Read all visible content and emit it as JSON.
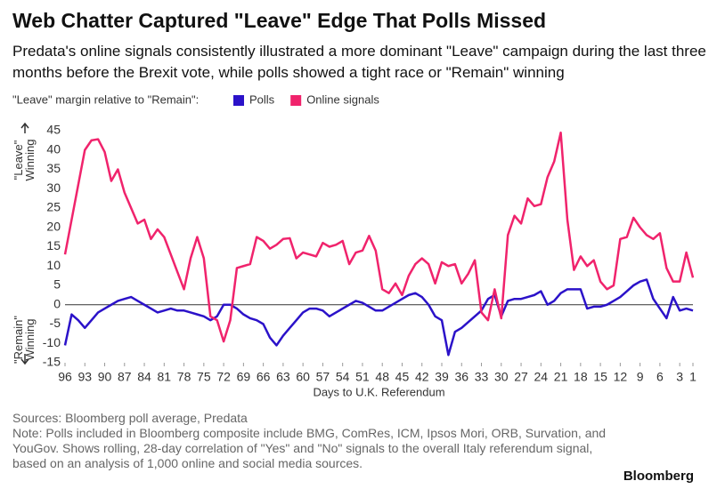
{
  "chart_data": {
    "type": "line",
    "title": "Web Chatter Captured \"Leave\" Edge That Polls Missed",
    "subtitle": "Predata's online signals consistently illustrated a more dominant \"Leave\" campaign during the last three months before the Brexit vote, while polls showed a tight race or \"Remain\" winning",
    "legend_title": "\"Leave\" margin relative to \"Remain\":",
    "y_label_top": [
      "\"Leave\"",
      "Winning"
    ],
    "y_label_bottom": [
      "\"Remain\"",
      "Winning"
    ],
    "x_label": "Days to U.K. Referendum",
    "notes": [
      "Sources: Bloomberg poll average, Predata",
      "Note: Polls included in Bloomberg composite include BMG, ComRes, ICM, Ipsos Mori, ORB, Survation, and YouGov. Shows rolling, 28-day correlation of \"Yes\" and \"No\" signals to the overall Italy referendum signal, based on an analysis of 1,000 online and social media sources."
    ],
    "brand": "Bloomberg",
    "xlim": [
      96,
      1
    ],
    "xticks": [
      96,
      93,
      90,
      87,
      84,
      81,
      78,
      75,
      72,
      69,
      66,
      63,
      60,
      57,
      54,
      51,
      48,
      45,
      42,
      39,
      36,
      33,
      30,
      27,
      24,
      21,
      18,
      15,
      12,
      9,
      6,
      3,
      1
    ],
    "ylim": [
      -15,
      45
    ],
    "yticks": [
      -15,
      -10,
      -5,
      0,
      5,
      10,
      15,
      20,
      25,
      30,
      35,
      40,
      45
    ],
    "x": [
      96,
      95,
      94,
      93,
      92,
      91,
      90,
      89,
      88,
      87,
      86,
      85,
      84,
      83,
      82,
      81,
      80,
      79,
      78,
      77,
      76,
      75,
      74,
      73,
      72,
      71,
      70,
      69,
      68,
      67,
      66,
      65,
      64,
      63,
      62,
      61,
      60,
      59,
      58,
      57,
      56,
      55,
      54,
      53,
      52,
      51,
      50,
      49,
      48,
      47,
      46,
      45,
      44,
      43,
      42,
      41,
      40,
      39,
      38,
      37,
      36,
      35,
      34,
      33,
      32,
      31,
      30,
      29,
      28,
      27,
      26,
      25,
      24,
      23,
      22,
      21,
      20,
      19,
      18,
      17,
      16,
      15,
      14,
      13,
      12,
      11,
      10,
      9,
      8,
      7,
      6,
      5,
      4,
      3,
      2,
      1
    ],
    "series": [
      {
        "name": "Polls",
        "color": "#2b12c9",
        "values": [
          -10.5,
          -2.5,
          -4,
          -6,
          -4,
          -2,
          -1,
          0,
          1,
          1.5,
          2,
          1,
          0,
          -1,
          -2,
          -1.5,
          -1,
          -1.5,
          -1.5,
          -2,
          -2.5,
          -3,
          -4,
          -3,
          0,
          0,
          -1,
          -2.5,
          -3.5,
          -4,
          -5,
          -8.5,
          -10.5,
          -8,
          -6,
          -4,
          -2,
          -1,
          -1,
          -1.5,
          -3,
          -2,
          -1,
          0,
          1,
          0.5,
          -0.5,
          -1.5,
          -1.5,
          -0.5,
          0.5,
          1.5,
          2.5,
          3,
          2,
          0,
          -3,
          -4,
          -13,
          -7,
          -6,
          -4.5,
          -3,
          -1.5,
          1.5,
          2.5,
          -3,
          1,
          1.5,
          1.5,
          2,
          2.5,
          3.5,
          0,
          1,
          3,
          4,
          4,
          4,
          -1,
          -0.5,
          -0.5,
          0,
          1,
          2,
          3.5,
          5,
          6,
          6.5,
          1.5,
          -1,
          -3.5,
          2,
          -1.5,
          -1,
          -1.5
        ]
      },
      {
        "name": "Online signals",
        "color": "#f0236c",
        "values": [
          13,
          22,
          31,
          40,
          42.5,
          42.8,
          39.5,
          32,
          35,
          29,
          25,
          21,
          22,
          17,
          19.5,
          17.5,
          13,
          8.5,
          4,
          12,
          17.5,
          12,
          -3,
          -4,
          -9.5,
          -4,
          9.5,
          10,
          10.5,
          17.5,
          16.5,
          14.5,
          15.5,
          17,
          17.2,
          12,
          13.5,
          13,
          12.5,
          16,
          15,
          15.5,
          16.5,
          10.5,
          13.5,
          14,
          17.8,
          14,
          4,
          3,
          5.5,
          2.5,
          7.5,
          10.5,
          12,
          10.5,
          5.5,
          11,
          10,
          10.5,
          5.5,
          8,
          11.5,
          -2,
          -4,
          4,
          -3.5,
          18,
          23,
          21,
          27.5,
          25.5,
          26,
          33,
          37,
          44.5,
          22,
          9,
          12.5,
          10,
          11.5,
          6,
          4,
          5,
          17,
          17.5,
          22.5,
          20,
          18,
          17,
          18.5,
          9.5,
          6,
          6,
          13.5,
          7
        ]
      }
    ]
  }
}
